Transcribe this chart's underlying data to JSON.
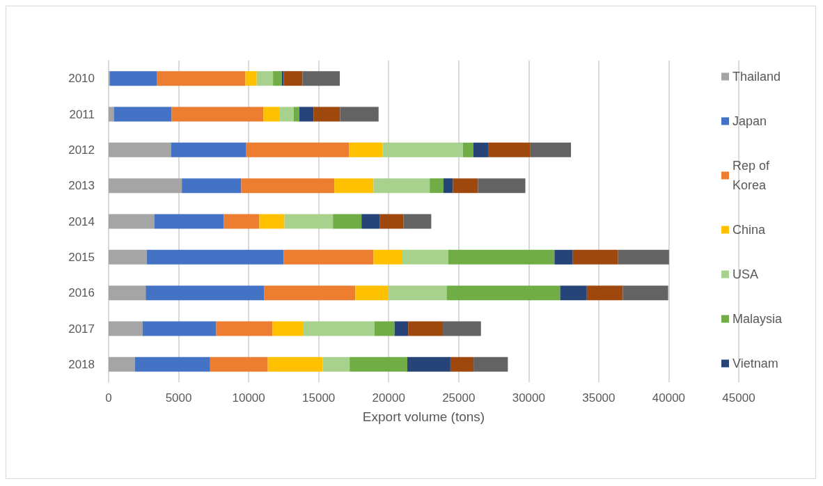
{
  "chart_data": {
    "type": "bar",
    "orientation": "horizontal",
    "stacked": true,
    "xlabel": "Export volume (tons)",
    "categories": [
      "2010",
      "2011",
      "2012",
      "2013",
      "2014",
      "2015",
      "2016",
      "2017",
      "2018"
    ],
    "series": [
      {
        "name": "Thailand",
        "color": "#a5a5a5",
        "values": [
          100,
          370,
          4450,
          5230,
          3260,
          2720,
          2650,
          2430,
          1870
        ]
      },
      {
        "name": "Japan",
        "color": "#4472c4",
        "values": [
          3330,
          4130,
          5380,
          4240,
          4970,
          9770,
          8470,
          5250,
          5380
        ]
      },
      {
        "name": "Rep of Korea",
        "color": "#ed7d31",
        "values": [
          6340,
          6550,
          7330,
          6650,
          2530,
          6420,
          6500,
          4020,
          4120
        ]
      },
      {
        "name": "China",
        "color": "#ffc000",
        "values": [
          810,
          1140,
          2400,
          2800,
          1800,
          2070,
          2380,
          2180,
          3920
        ]
      },
      {
        "name": "USA",
        "color": "#a9d18e",
        "values": [
          1160,
          1030,
          5740,
          4010,
          3460,
          3280,
          4140,
          5110,
          1920
        ]
      },
      {
        "name": "Malaysia",
        "color": "#70ad47",
        "values": [
          630,
          400,
          750,
          980,
          2040,
          7580,
          8110,
          1430,
          4120
        ]
      },
      {
        "name": "Vietnam",
        "color": "#264478",
        "values": [
          130,
          1010,
          1090,
          680,
          1290,
          1310,
          1900,
          970,
          3080
        ]
      },
      {
        "color": "#9e480e",
        "values": [
          1340,
          1900,
          2950,
          1790,
          1700,
          3210,
          2570,
          2480,
          1650
        ]
      },
      {
        "color": "#636363",
        "values": [
          2670,
          2750,
          2930,
          3380,
          1990,
          3660,
          3240,
          2720,
          2450
        ]
      }
    ],
    "xlim": [
      0,
      45000
    ],
    "xticks": [
      0,
      5000,
      10000,
      15000,
      20000,
      25000,
      30000,
      35000,
      40000,
      45000
    ],
    "grid": "x",
    "legend": "right"
  }
}
